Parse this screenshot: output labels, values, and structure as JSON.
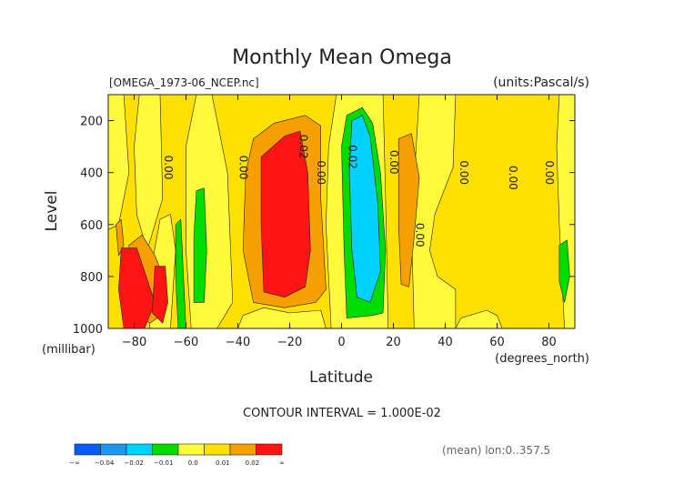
{
  "chart_data": {
    "type": "heatmap",
    "title": "Monthly Mean Omega",
    "file_label": "[OMEGA_1973-06_NCEP.nc]",
    "units_label": "(units:Pascal/s)",
    "xlabel": "Latitude",
    "x_unit_label": "(degrees_north)",
    "ylabel": "Level",
    "y_unit_label": "(millibar)",
    "xlim": [
      -90,
      90
    ],
    "ylim": [
      1000,
      100
    ],
    "x_ticks": [
      -80,
      -60,
      -40,
      -20,
      0,
      20,
      40,
      60,
      80
    ],
    "y_ticks": [
      200,
      400,
      600,
      800,
      1000
    ],
    "contour_interval_label": "CONTOUR INTERVAL = 1.000E-02",
    "footer_note": "(mean) lon:0..357.5",
    "contour_labels": [
      {
        "text": "0.00",
        "lat": -67,
        "level": 380
      },
      {
        "text": "0.00",
        "lat": -38,
        "level": 380
      },
      {
        "text": "0.02",
        "lat": -15,
        "level": 300
      },
      {
        "text": "0.00",
        "lat": -8,
        "level": 400
      },
      {
        "text": "0.02",
        "lat": 4,
        "level": 340
      },
      {
        "text": "0.00",
        "lat": 20,
        "level": 360
      },
      {
        "text": "0.00",
        "lat": 30,
        "level": 640
      },
      {
        "text": "0.00",
        "lat": 47,
        "level": 400
      },
      {
        "text": "0.00",
        "lat": 66,
        "level": 420
      },
      {
        "text": "0.00",
        "lat": 80,
        "level": 400
      }
    ],
    "colorbar": {
      "colors": [
        "#0a5cf0",
        "#1e96f0",
        "#00d2ff",
        "#00dc00",
        "#fffa3c",
        "#ffe000",
        "#f5a000",
        "#ff1414"
      ],
      "labels": [
        "-∞",
        "-0.04",
        "-0.02",
        "-0.01",
        "0.0",
        "0.01",
        "0.02",
        "∞"
      ]
    },
    "bands": [
      {
        "class": 5,
        "points": [
          [
            -90,
            100
          ],
          [
            90,
            100
          ],
          [
            90,
            1000
          ],
          [
            -90,
            1000
          ]
        ]
      },
      {
        "class": 4,
        "points": [
          [
            -90,
            100
          ],
          [
            -84,
            100
          ],
          [
            -82,
            400
          ],
          [
            -86,
            600
          ],
          [
            -90,
            620
          ]
        ]
      },
      {
        "class": 4,
        "points": [
          [
            -78,
            100
          ],
          [
            -70,
            100
          ],
          [
            -69,
            500
          ],
          [
            -75,
            700
          ],
          [
            -79,
            560
          ],
          [
            -80,
            300
          ]
        ]
      },
      {
        "class": 4,
        "points": [
          [
            -56,
            100
          ],
          [
            -50,
            100
          ],
          [
            -44,
            400
          ],
          [
            -42,
            900
          ],
          [
            -48,
            1000
          ],
          [
            -58,
            1000
          ],
          [
            -60,
            700
          ],
          [
            -60,
            300
          ]
        ]
      },
      {
        "class": 4,
        "points": [
          [
            -2,
            100
          ],
          [
            16,
            100
          ],
          [
            17,
            500
          ],
          [
            18,
            1000
          ],
          [
            -4,
            1000
          ],
          [
            -6,
            600
          ],
          [
            -5,
            300
          ]
        ]
      },
      {
        "class": 4,
        "points": [
          [
            30,
            100
          ],
          [
            44,
            100
          ],
          [
            43,
            380
          ],
          [
            36,
            560
          ],
          [
            34,
            700
          ],
          [
            37,
            800
          ],
          [
            44,
            850
          ],
          [
            44,
            1000
          ],
          [
            28,
            1000
          ],
          [
            27,
            600
          ]
        ]
      },
      {
        "class": 4,
        "points": [
          [
            84,
            100
          ],
          [
            90,
            100
          ],
          [
            90,
            1000
          ],
          [
            86,
            1000
          ],
          [
            84,
            600
          ],
          [
            83,
            300
          ]
        ]
      },
      {
        "class": 4,
        "points": [
          [
            -70,
            580
          ],
          [
            -66,
            560
          ],
          [
            -64,
            700
          ],
          [
            -66,
            1000
          ],
          [
            -74,
            1000
          ],
          [
            -74,
            800
          ]
        ]
      },
      {
        "class": 4,
        "points": [
          [
            -38,
            950
          ],
          [
            -30,
            920
          ],
          [
            -20,
            940
          ],
          [
            -8,
            930
          ],
          [
            -6,
            1000
          ],
          [
            -40,
            1000
          ]
        ]
      },
      {
        "class": 4,
        "points": [
          [
            46,
            960
          ],
          [
            56,
            930
          ],
          [
            60,
            950
          ],
          [
            62,
            1000
          ],
          [
            44,
            1000
          ]
        ]
      },
      {
        "class": 3,
        "points": [
          [
            2,
            180
          ],
          [
            8,
            150
          ],
          [
            12,
            210
          ],
          [
            15,
            400
          ],
          [
            17,
            700
          ],
          [
            16,
            940
          ],
          [
            12,
            950
          ],
          [
            2,
            960
          ],
          [
            1,
            700
          ],
          [
            0,
            300
          ]
        ]
      },
      {
        "class": 3,
        "points": [
          [
            -56,
            470
          ],
          [
            -53,
            460
          ],
          [
            -52,
            700
          ],
          [
            -53,
            900
          ],
          [
            -57,
            900
          ],
          [
            -57,
            650
          ]
        ]
      },
      {
        "class": 3,
        "points": [
          [
            -64,
            600
          ],
          [
            -62,
            580
          ],
          [
            -61,
            800
          ],
          [
            -60,
            1000
          ],
          [
            -63,
            1000
          ],
          [
            -64,
            800
          ]
        ]
      },
      {
        "class": 3,
        "points": [
          [
            84,
            680
          ],
          [
            87,
            660
          ],
          [
            88,
            800
          ],
          [
            86,
            900
          ],
          [
            84,
            820
          ]
        ]
      },
      {
        "class": 3,
        "points": [
          [
            -72,
            820
          ],
          [
            -70,
            790
          ],
          [
            -69,
            880
          ],
          [
            -70,
            940
          ],
          [
            -72,
            900
          ]
        ]
      },
      {
        "class": 2,
        "points": [
          [
            4,
            200
          ],
          [
            8,
            180
          ],
          [
            11,
            260
          ],
          [
            14,
            520
          ],
          [
            15,
            780
          ],
          [
            11,
            900
          ],
          [
            6,
            880
          ],
          [
            4,
            700
          ],
          [
            3,
            400
          ]
        ]
      },
      {
        "class": 6,
        "points": [
          [
            -34,
            270
          ],
          [
            -26,
            210
          ],
          [
            -14,
            180
          ],
          [
            -8,
            220
          ],
          [
            -8,
            500
          ],
          [
            -6,
            850
          ],
          [
            -10,
            900
          ],
          [
            -22,
            920
          ],
          [
            -34,
            900
          ],
          [
            -38,
            700
          ],
          [
            -37,
            400
          ]
        ]
      },
      {
        "class": 6,
        "points": [
          [
            22,
            270
          ],
          [
            27,
            250
          ],
          [
            30,
            420
          ],
          [
            28,
            650
          ],
          [
            26,
            840
          ],
          [
            23,
            830
          ],
          [
            22,
            600
          ]
        ]
      },
      {
        "class": 6,
        "points": [
          [
            -82,
            680
          ],
          [
            -77,
            640
          ],
          [
            -72,
            720
          ],
          [
            -68,
            820
          ],
          [
            -68,
            940
          ],
          [
            -74,
            980
          ],
          [
            -82,
            900
          ]
        ]
      },
      {
        "class": 6,
        "points": [
          [
            -87,
            600
          ],
          [
            -85,
            580
          ],
          [
            -84,
            680
          ],
          [
            -86,
            720
          ]
        ]
      },
      {
        "class": 7,
        "points": [
          [
            -31,
            340
          ],
          [
            -22,
            260
          ],
          [
            -16,
            240
          ],
          [
            -13,
            400
          ],
          [
            -12,
            700
          ],
          [
            -14,
            840
          ],
          [
            -22,
            880
          ],
          [
            -30,
            860
          ],
          [
            -31,
            600
          ]
        ]
      },
      {
        "class": 7,
        "points": [
          [
            -85,
            690
          ],
          [
            -79,
            690
          ],
          [
            -76,
            780
          ],
          [
            -72,
            900
          ],
          [
            -76,
            1000
          ],
          [
            -84,
            1000
          ],
          [
            -86,
            850
          ]
        ]
      },
      {
        "class": 7,
        "points": [
          [
            -72,
            760
          ],
          [
            -68,
            760
          ],
          [
            -67,
            900
          ],
          [
            -69,
            980
          ],
          [
            -73,
            940
          ]
        ]
      }
    ]
  }
}
